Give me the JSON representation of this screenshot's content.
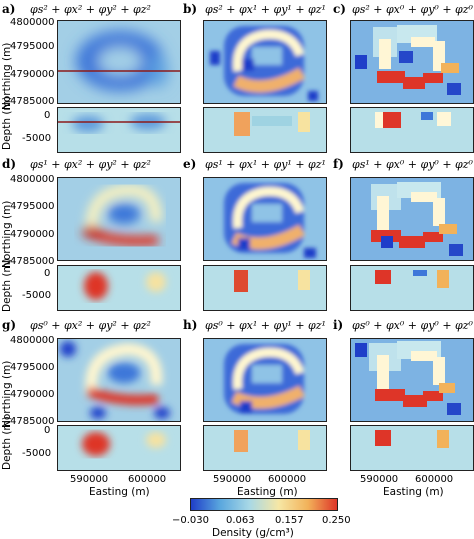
{
  "panels": [
    {
      "letter": "a)",
      "formula": "φs² + φx² + φy² + φz²"
    },
    {
      "letter": "b)",
      "formula": "φs² + φx¹ + φy¹ + φz¹"
    },
    {
      "letter": "c)",
      "formula": "φs² + φx⁰ + φy⁰ + φz⁰"
    },
    {
      "letter": "d)",
      "formula": "φs¹ + φx² + φy² + φz²"
    },
    {
      "letter": "e)",
      "formula": "φs¹ + φx¹ + φy¹ + φz¹"
    },
    {
      "letter": "f)",
      "formula": "φs¹ + φx⁰ + φy⁰ + φz⁰"
    },
    {
      "letter": "g)",
      "formula": "φs⁰ + φx² + φy² + φz²"
    },
    {
      "letter": "h)",
      "formula": "φs⁰ + φx¹ + φy¹ + φz¹"
    },
    {
      "letter": "i)",
      "formula": "φs⁰ + φx⁰ + φy⁰ + φz⁰"
    }
  ],
  "axes": {
    "northing_label": "Northing (m)",
    "depth_label": "Depth (m)",
    "easting_label": "Easting (m)",
    "northing_ticks": [
      "4800000",
      "4795000",
      "4790000",
      "4785000"
    ],
    "depth_ticks": [
      "0",
      "-5000"
    ],
    "easting_ticks": [
      "590000",
      "600000"
    ]
  },
  "colorbar": {
    "title": "Density (g/cm³)",
    "ticks": [
      "−0.030",
      "0.063",
      "0.157",
      "0.250"
    ],
    "colors": [
      "#1f3ec9",
      "#5aa7de",
      "#a8d8e6",
      "#f6e7a5",
      "#f2b25a",
      "#de3528"
    ]
  }
}
